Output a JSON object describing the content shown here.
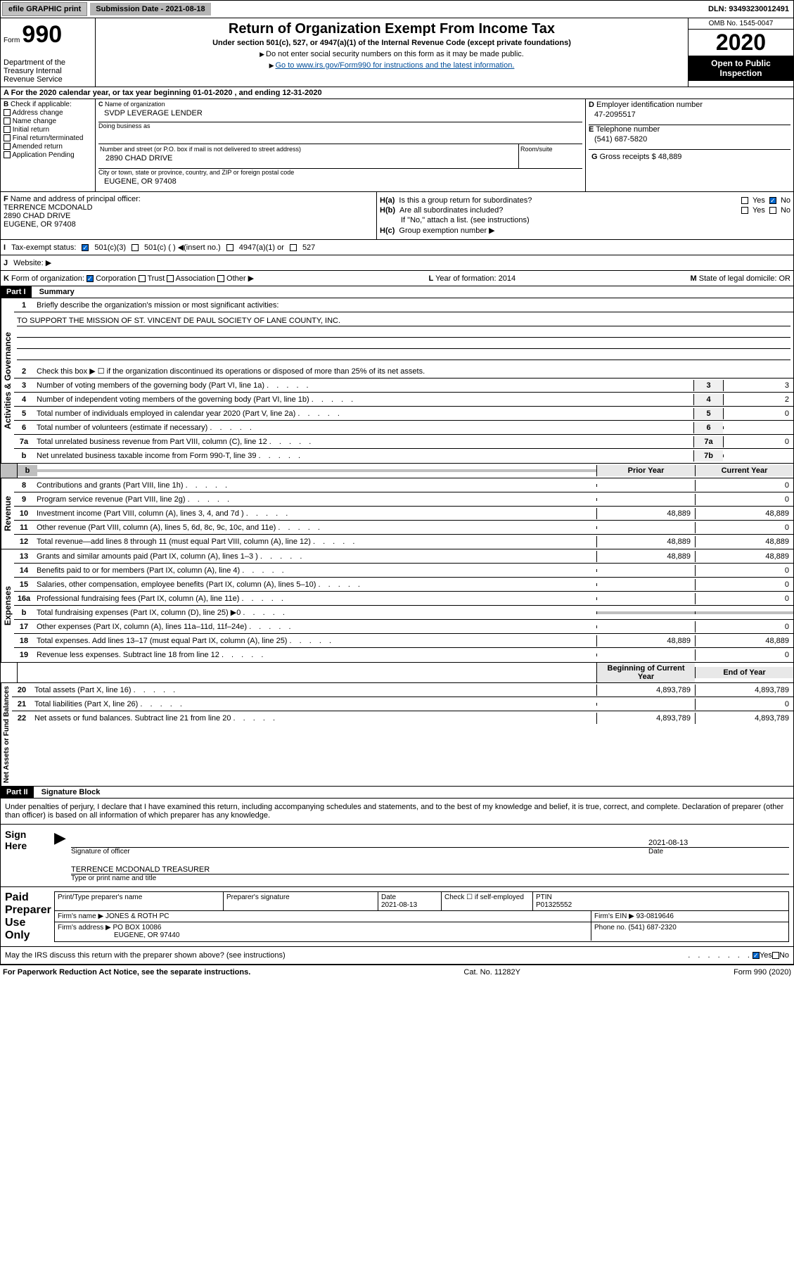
{
  "topbar": {
    "efile": "efile GRAPHIC print",
    "submit": "Submission Date - 2021-08-18",
    "dln": "DLN: 93493230012491"
  },
  "header": {
    "omb": "OMB No. 1545-0047",
    "form_label": "Form",
    "form_num": "990",
    "year": "2020",
    "title": "Return of Organization Exempt From Income Tax",
    "sub": "Under section 501(c), 527, or 4947(a)(1) of the Internal Revenue Code (except private foundations)",
    "note1": "Do not enter social security numbers on this form as it may be made public.",
    "note2": "Go to www.irs.gov/Form990 for instructions and the latest information.",
    "inspection": "Open to Public Inspection",
    "dept": "Department of the Treasury Internal Revenue Service"
  },
  "a_line": "For the 2020 calendar year, or tax year beginning 01-01-2020   , and ending 12-31-2020",
  "checkb": {
    "label": "Check if applicable:",
    "addr": "Address change",
    "name": "Name change",
    "init": "Initial return",
    "final": "Final return/terminated",
    "amend": "Amended return",
    "app": "Application Pending"
  },
  "c": {
    "label": "Name of organization",
    "val": "SVDP LEVERAGE LENDER",
    "dba": "Doing business as",
    "street_label": "Number and street (or P.O. box if mail is not delivered to street address)",
    "room": "Room/suite",
    "street": "2890 CHAD DRIVE",
    "city_label": "City or town, state or province, country, and ZIP or foreign postal code",
    "city": "EUGENE, OR  97408"
  },
  "d": {
    "label": "Employer identification number",
    "val": "47-2095517"
  },
  "e": {
    "label": "Telephone number",
    "val": "(541) 687-5820"
  },
  "g": {
    "label": "Gross receipts $",
    "val": "48,889"
  },
  "f": {
    "label": "Name and address of principal officer:",
    "name": "TERRENCE MCDONALD",
    "addr1": "2890 CHAD DRIVE",
    "addr2": "EUGENE, OR  97408"
  },
  "h": {
    "a": "Is this a group return for subordinates?",
    "b": "Are all subordinates included?",
    "note": "If \"No,\" attach a list. (see instructions)",
    "c": "Group exemption number ▶"
  },
  "i": {
    "label": "Tax-exempt status:",
    "o1": "501(c)(3)",
    "o2": "501(c) (  ) ◀(insert no.)",
    "o3": "4947(a)(1) or",
    "o4": "527"
  },
  "j": {
    "label": "Website: ▶"
  },
  "k": {
    "label": "Form of organization:",
    "o1": "Corporation",
    "o2": "Trust",
    "o3": "Association",
    "o4": "Other ▶"
  },
  "l": {
    "label": "Year of formation:",
    "val": "2014"
  },
  "m": {
    "label": "State of legal domicile:",
    "val": "OR"
  },
  "part1": {
    "hdr": "Part I",
    "title": "Summary",
    "l1": "Briefly describe the organization's mission or most significant activities:",
    "mission": "TO SUPPORT THE MISSION OF ST. VINCENT DE PAUL SOCIETY OF LANE COUNTY, INC.",
    "l2": "Check this box ▶ ☐  if the organization discontinued its operations or disposed of more than 25% of its net assets.",
    "lines": [
      {
        "n": "3",
        "t": "Number of voting members of the governing body (Part VI, line 1a)",
        "nc": "3",
        "v": "3"
      },
      {
        "n": "4",
        "t": "Number of independent voting members of the governing body (Part VI, line 1b)",
        "nc": "4",
        "v": "2"
      },
      {
        "n": "5",
        "t": "Total number of individuals employed in calendar year 2020 (Part V, line 2a)",
        "nc": "5",
        "v": "0"
      },
      {
        "n": "6",
        "t": "Total number of volunteers (estimate if necessary)",
        "nc": "6",
        "v": ""
      },
      {
        "n": "7a",
        "t": "Total unrelated business revenue from Part VIII, column (C), line 12",
        "nc": "7a",
        "v": "0"
      },
      {
        "n": "b",
        "t": "Net unrelated business taxable income from Form 990-T, line 39",
        "nc": "7b",
        "v": ""
      }
    ],
    "py": "Prior Year",
    "cy": "Current Year",
    "rev": [
      {
        "n": "8",
        "t": "Contributions and grants (Part VIII, line 1h)",
        "p": "",
        "c": "0"
      },
      {
        "n": "9",
        "t": "Program service revenue (Part VIII, line 2g)",
        "p": "",
        "c": "0"
      },
      {
        "n": "10",
        "t": "Investment income (Part VIII, column (A), lines 3, 4, and 7d )",
        "p": "48,889",
        "c": "48,889"
      },
      {
        "n": "11",
        "t": "Other revenue (Part VIII, column (A), lines 5, 6d, 8c, 9c, 10c, and 11e)",
        "p": "",
        "c": "0"
      },
      {
        "n": "12",
        "t": "Total revenue—add lines 8 through 11 (must equal Part VIII, column (A), line 12)",
        "p": "48,889",
        "c": "48,889"
      }
    ],
    "exp": [
      {
        "n": "13",
        "t": "Grants and similar amounts paid (Part IX, column (A), lines 1–3 )",
        "p": "48,889",
        "c": "48,889"
      },
      {
        "n": "14",
        "t": "Benefits paid to or for members (Part IX, column (A), line 4)",
        "p": "",
        "c": "0"
      },
      {
        "n": "15",
        "t": "Salaries, other compensation, employee benefits (Part IX, column (A), lines 5–10)",
        "p": "",
        "c": "0"
      },
      {
        "n": "16a",
        "t": "Professional fundraising fees (Part IX, column (A), line 11e)",
        "p": "",
        "c": "0"
      },
      {
        "n": "b",
        "t": "Total fundraising expenses (Part IX, column (D), line 25) ▶0",
        "p": "shade",
        "c": "shade"
      },
      {
        "n": "17",
        "t": "Other expenses (Part IX, column (A), lines 11a–11d, 11f–24e)",
        "p": "",
        "c": "0"
      },
      {
        "n": "18",
        "t": "Total expenses. Add lines 13–17 (must equal Part IX, column (A), line 25)",
        "p": "48,889",
        "c": "48,889"
      },
      {
        "n": "19",
        "t": "Revenue less expenses. Subtract line 18 from line 12",
        "p": "",
        "c": "0"
      }
    ],
    "by": "Beginning of Current Year",
    "ey": "End of Year",
    "net": [
      {
        "n": "20",
        "t": "Total assets (Part X, line 16)",
        "p": "4,893,789",
        "c": "4,893,789"
      },
      {
        "n": "21",
        "t": "Total liabilities (Part X, line 26)",
        "p": "",
        "c": "0"
      },
      {
        "n": "22",
        "t": "Net assets or fund balances. Subtract line 21 from line 20",
        "p": "4,893,789",
        "c": "4,893,789"
      }
    ],
    "vl1": "Activities & Governance",
    "vl2": "Revenue",
    "vl3": "Expenses",
    "vl4": "Net Assets or Fund Balances"
  },
  "part2": {
    "hdr": "Part II",
    "title": "Signature Block",
    "decl": "Under penalties of perjury, I declare that I have examined this return, including accompanying schedules and statements, and to the best of my knowledge and belief, it is true, correct, and complete. Declaration of preparer (other than officer) is based on all information of which preparer has any knowledge.",
    "sign": "Sign Here",
    "sig_officer": "Signature of officer",
    "date": "Date",
    "sig_date": "2021-08-13",
    "type_name": "Type or print name and title",
    "officer_name": "TERRENCE MCDONALD  TREASURER",
    "paid": "Paid Preparer Use Only",
    "prep_name": "Print/Type preparer's name",
    "prep_sig": "Preparer's signature",
    "prep_date": "Date",
    "prep_date_v": "2021-08-13",
    "check_self": "Check ☐ if self-employed",
    "ptin": "PTIN",
    "ptin_v": "P01325552",
    "firm": "Firm's name  ▶",
    "firm_v": "JONES & ROTH PC",
    "firm_ein": "Firm's EIN ▶",
    "firm_ein_v": "93-0819646",
    "firm_addr": "Firm's address ▶",
    "firm_addr_v": "PO BOX 10086",
    "firm_city": "EUGENE, OR  97440",
    "phone": "Phone no.",
    "phone_v": "(541) 687-2320",
    "discuss": "May the IRS discuss this return with the preparer shown above? (see instructions)"
  },
  "footer": {
    "l": "For Paperwork Reduction Act Notice, see the separate instructions.",
    "c": "Cat. No. 11282Y",
    "r": "Form 990 (2020)"
  }
}
